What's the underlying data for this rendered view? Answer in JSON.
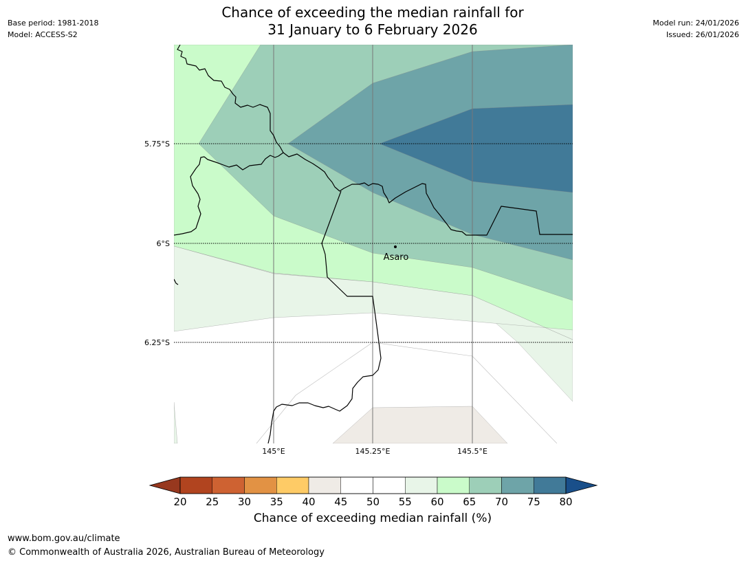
{
  "header": {
    "title_line1": "Chance of exceeding the median rainfall for",
    "title_line2": "31 January to 6 February 2026",
    "base_period": "Base period: 1981-2018",
    "model": "Model: ACCESS-S2",
    "model_run": "Model run: 24/01/2026",
    "issued": "Issued: 26/01/2026"
  },
  "map": {
    "lat_labels": [
      "5.75°S",
      "6°S",
      "6.25°S"
    ],
    "lon_labels": [
      "145°E",
      "145.25°E",
      "145.5°E"
    ],
    "place": {
      "name": "Asaro"
    },
    "colors": {
      "c40_45": "#efebe6",
      "c45_55": "#ffffff",
      "c55_60": "#e8f5e8",
      "c60_65": "#cafbca",
      "c65_70": "#9dcfb8",
      "c70_75": "#6ea4a8",
      "c75_80": "#417a98",
      "boundary": "#000000",
      "gridline": "#777777"
    }
  },
  "colorbar": {
    "label": "Chance of exceeding median rainfall (%)",
    "ticks": [
      "20",
      "25",
      "30",
      "35",
      "40",
      "45",
      "50",
      "55",
      "60",
      "65",
      "70",
      "75",
      "80"
    ],
    "below_color": "#97381e",
    "above_color": "#194f8a",
    "segment_colors": [
      "#b1441f",
      "#ce6232",
      "#e29244",
      "#fecb66",
      "#efebe6",
      "#ffffff",
      "#ffffff",
      "#e8f5e8",
      "#cafbca",
      "#9dcfb8",
      "#6ea4a8",
      "#417a98"
    ]
  },
  "footer": {
    "url": "www.bom.gov.au/climate",
    "copyright": "© Commonwealth of Australia 2026, Australian Bureau of Meteorology"
  }
}
